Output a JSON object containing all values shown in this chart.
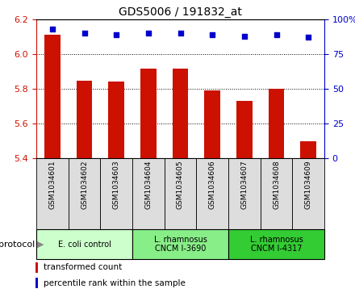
{
  "title": "GDS5006 / 191832_at",
  "samples": [
    "GSM1034601",
    "GSM1034602",
    "GSM1034603",
    "GSM1034604",
    "GSM1034605",
    "GSM1034606",
    "GSM1034607",
    "GSM1034608",
    "GSM1034609"
  ],
  "bar_values": [
    6.11,
    5.845,
    5.84,
    5.915,
    5.915,
    5.79,
    5.73,
    5.8,
    5.5
  ],
  "percentile_values": [
    93,
    90,
    89,
    90,
    90,
    89,
    88,
    89,
    87
  ],
  "bar_color": "#cc1100",
  "dot_color": "#0000cc",
  "ylim_left": [
    5.4,
    6.2
  ],
  "ylim_right": [
    0,
    100
  ],
  "yticks_left": [
    5.4,
    5.6,
    5.8,
    6.0,
    6.2
  ],
  "yticks_right": [
    0,
    25,
    50,
    75,
    100
  ],
  "ytick_labels_right": [
    "0",
    "25",
    "50",
    "75",
    "100%"
  ],
  "grid_values": [
    5.6,
    5.8,
    6.0
  ],
  "protocols": [
    {
      "label": "E. coli control",
      "start": 0,
      "end": 3,
      "color": "#ccffcc"
    },
    {
      "label": "L. rhamnosus\nCNCM I-3690",
      "start": 3,
      "end": 6,
      "color": "#88ee88"
    },
    {
      "label": "L. rhamnosus\nCNCM I-4317",
      "start": 6,
      "end": 9,
      "color": "#33cc33"
    }
  ],
  "legend": [
    {
      "label": "transformed count",
      "color": "#cc1100"
    },
    {
      "label": "percentile rank within the sample",
      "color": "#0000cc"
    }
  ],
  "bar_width": 0.5,
  "bar_bottom": 5.4,
  "bg_color": "#ffffff",
  "sample_box_color": "#dddddd"
}
